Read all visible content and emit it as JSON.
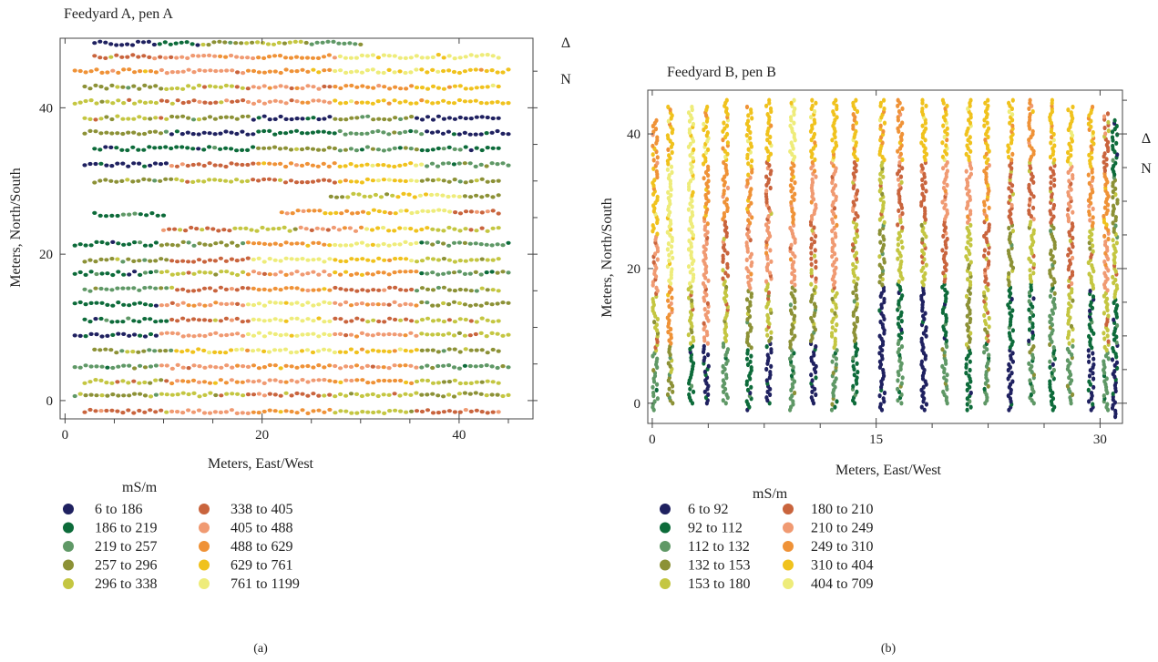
{
  "chart_data": [
    {
      "type": "scatter",
      "panel_label": "(a)",
      "title": "Feedyard A, pen A",
      "xlabel": "Meters, East/West",
      "ylabel": "Meters, North/South",
      "xlim": [
        -0.5,
        47.5
      ],
      "ylim": [
        -2.5,
        49.5
      ],
      "xticks": [
        0,
        20,
        40
      ],
      "yticks": [
        0,
        20,
        40
      ],
      "north_arrow": [
        "Δ",
        "N"
      ],
      "legend_title": "mS/m",
      "legend_placement": "below-left",
      "series": [
        {
          "name": "6 to 186",
          "color": "#1f2160"
        },
        {
          "name": "186 to 219",
          "color": "#0d6b3a"
        },
        {
          "name": "219 to 257",
          "color": "#5f9866"
        },
        {
          "name": "257 to 296",
          "color": "#8c9136"
        },
        {
          "name": "296 to 338",
          "color": "#c4c641"
        },
        {
          "name": "338 to 405",
          "color": "#c9643d"
        },
        {
          "name": "405 to 488",
          "color": "#f09a72"
        },
        {
          "name": "488 to 629",
          "color": "#ef9237"
        },
        {
          "name": "629 to 761",
          "color": "#f0c21d"
        },
        {
          "name": "761 to 1199",
          "color": "#eeec7a"
        }
      ],
      "passes": {
        "orientation": "horizontal",
        "tracks": [
          {
            "y": -1.5,
            "x_range": [
              2,
              44
            ],
            "classes": [
              5,
              6,
              7,
              4,
              5
            ]
          },
          {
            "y": 0.8,
            "x_range": [
              1,
              45
            ],
            "classes": [
              3,
              4,
              5,
              4,
              3
            ]
          },
          {
            "y": 2.6,
            "x_range": [
              2,
              44
            ],
            "classes": [
              4,
              7,
              6,
              7,
              4
            ]
          },
          {
            "y": 4.6,
            "x_range": [
              1,
              45
            ],
            "classes": [
              2,
              6,
              7,
              6,
              2
            ]
          },
          {
            "y": 6.8,
            "x_range": [
              3,
              44
            ],
            "classes": [
              3,
              8,
              9,
              8,
              3
            ]
          },
          {
            "y": 9.0,
            "x_range": [
              1,
              45
            ],
            "classes": [
              0,
              6,
              9,
              6,
              4
            ]
          },
          {
            "y": 11.0,
            "x_range": [
              2,
              44
            ],
            "classes": [
              1,
              5,
              9,
              5,
              4
            ]
          },
          {
            "y": 13.2,
            "x_range": [
              1,
              45
            ],
            "classes": [
              1,
              6,
              9,
              6,
              3
            ]
          },
          {
            "y": 15.2,
            "x_range": [
              2,
              44
            ],
            "classes": [
              2,
              5,
              7,
              5,
              3
            ]
          },
          {
            "y": 17.4,
            "x_range": [
              1,
              45
            ],
            "classes": [
              1,
              4,
              6,
              7,
              2
            ]
          },
          {
            "y": 19.2,
            "x_range": [
              2,
              44
            ],
            "classes": [
              3,
              5,
              9,
              8,
              4
            ]
          },
          {
            "y": 21.4,
            "x_range": [
              1,
              45
            ],
            "classes": [
              1,
              3,
              7,
              9,
              2
            ]
          },
          {
            "y": 23.4,
            "x_range": [
              10,
              44
            ],
            "classes": [
              5,
              4,
              6,
              8,
              4
            ]
          },
          {
            "y": 25.4,
            "x_range": [
              3,
              10
            ],
            "classes": [
              1,
              1,
              2,
              1,
              1
            ]
          },
          {
            "y": 25.8,
            "x_range": [
              22,
              44
            ],
            "classes": [
              7,
              7,
              8,
              9,
              5
            ]
          },
          {
            "y": 28.0,
            "x_range": [
              27,
              44
            ],
            "classes": [
              3,
              4,
              8,
              9,
              3
            ]
          },
          {
            "y": 30.0,
            "x_range": [
              3,
              44
            ],
            "classes": [
              3,
              4,
              5,
              8,
              3
            ]
          },
          {
            "y": 32.2,
            "x_range": [
              2,
              45
            ],
            "classes": [
              0,
              5,
              7,
              8,
              2
            ]
          },
          {
            "y": 34.4,
            "x_range": [
              3,
              44
            ],
            "classes": [
              1,
              1,
              3,
              2,
              1
            ]
          },
          {
            "y": 36.6,
            "x_range": [
              2,
              45
            ],
            "classes": [
              3,
              0,
              1,
              2,
              0
            ]
          },
          {
            "y": 38.6,
            "x_range": [
              2,
              44
            ],
            "classes": [
              4,
              3,
              0,
              3,
              0
            ]
          },
          {
            "y": 40.8,
            "x_range": [
              1,
              45
            ],
            "classes": [
              4,
              5,
              6,
              8,
              8
            ]
          },
          {
            "y": 42.8,
            "x_range": [
              2,
              44
            ],
            "classes": [
              3,
              4,
              6,
              7,
              8
            ]
          },
          {
            "y": 45.0,
            "x_range": [
              1,
              45
            ],
            "classes": [
              7,
              6,
              7,
              9,
              8
            ]
          },
          {
            "y": 47.0,
            "x_range": [
              3,
              44
            ],
            "classes": [
              5,
              6,
              7,
              9,
              9
            ]
          },
          {
            "y": 48.8,
            "x_range": [
              3,
              30
            ],
            "classes": [
              0,
              1,
              3,
              4,
              2
            ]
          }
        ]
      }
    },
    {
      "type": "scatter",
      "panel_label": "(b)",
      "title": "Feedyard B, pen B",
      "xlabel": "Meters, East/West",
      "ylabel": "Meters, North/South",
      "xlim": [
        -0.3,
        31.5
      ],
      "ylim": [
        -3,
        46.5
      ],
      "xticks": [
        0,
        15,
        30
      ],
      "yticks": [
        0,
        20,
        40
      ],
      "north_arrow": [
        "Δ",
        "N"
      ],
      "legend_title": "mS/m",
      "legend_placement": "below-left",
      "series": [
        {
          "name": "6 to 92",
          "color": "#1f2160"
        },
        {
          "name": "92 to 112",
          "color": "#0d6b3a"
        },
        {
          "name": "112 to 132",
          "color": "#5f9866"
        },
        {
          "name": "132 to 153",
          "color": "#8c9136"
        },
        {
          "name": "153 to 180",
          "color": "#c4c641"
        },
        {
          "name": "180 to 210",
          "color": "#c9643d"
        },
        {
          "name": "210 to 249",
          "color": "#f09a72"
        },
        {
          "name": "249 to 310",
          "color": "#ef9237"
        },
        {
          "name": "310 to 404",
          "color": "#f0c21d"
        },
        {
          "name": "404 to 709",
          "color": "#eeec7a"
        }
      ],
      "passes": {
        "orientation": "vertical",
        "tracks": [
          {
            "x": 0.2,
            "y_range": [
              -1,
              42
            ],
            "classes": [
              2,
              4,
              6,
              8,
              7
            ]
          },
          {
            "x": 1.2,
            "y_range": [
              0,
              44
            ],
            "classes": [
              3,
              7,
              9,
              9,
              8
            ]
          },
          {
            "x": 2.6,
            "y_range": [
              0,
              44
            ],
            "classes": [
              1,
              4,
              9,
              9,
              9
            ]
          },
          {
            "x": 3.6,
            "y_range": [
              0,
              44
            ],
            "classes": [
              0,
              6,
              6,
              7,
              8
            ]
          },
          {
            "x": 4.9,
            "y_range": [
              0,
              45
            ],
            "classes": [
              2,
              4,
              5,
              7,
              8
            ]
          },
          {
            "x": 6.5,
            "y_range": [
              -1,
              44
            ],
            "classes": [
              1,
              3,
              6,
              7,
              8
            ]
          },
          {
            "x": 7.8,
            "y_range": [
              0,
              45
            ],
            "classes": [
              0,
              4,
              6,
              5,
              8
            ]
          },
          {
            "x": 9.4,
            "y_range": [
              -1,
              45
            ],
            "classes": [
              2,
              3,
              6,
              7,
              9
            ]
          },
          {
            "x": 10.8,
            "y_range": [
              0,
              45
            ],
            "classes": [
              0,
              3,
              5,
              6,
              8
            ]
          },
          {
            "x": 12.2,
            "y_range": [
              -1,
              45
            ],
            "classes": [
              2,
              4,
              6,
              6,
              8
            ]
          },
          {
            "x": 13.6,
            "y_range": [
              0,
              45
            ],
            "classes": [
              1,
              3,
              4,
              5,
              8
            ]
          },
          {
            "x": 15.4,
            "y_range": [
              -1,
              45
            ],
            "classes": [
              0,
              0,
              3,
              4,
              8
            ]
          },
          {
            "x": 16.6,
            "y_range": [
              0,
              45
            ],
            "classes": [
              2,
              1,
              4,
              5,
              7
            ]
          },
          {
            "x": 18.2,
            "y_range": [
              -1,
              45
            ],
            "classes": [
              0,
              0,
              4,
              5,
              8
            ]
          },
          {
            "x": 19.6,
            "y_range": [
              0,
              45
            ],
            "classes": [
              2,
              1,
              5,
              6,
              8
            ]
          },
          {
            "x": 21.2,
            "y_range": [
              -1,
              45
            ],
            "classes": [
              1,
              3,
              4,
              6,
              8
            ]
          },
          {
            "x": 22.4,
            "y_range": [
              0,
              45
            ],
            "classes": [
              2,
              4,
              5,
              7,
              8
            ]
          },
          {
            "x": 24.0,
            "y_range": [
              -1,
              45
            ],
            "classes": [
              0,
              1,
              3,
              5,
              8
            ]
          },
          {
            "x": 25.4,
            "y_range": [
              0,
              45
            ],
            "classes": [
              2,
              1,
              4,
              5,
              7
            ]
          },
          {
            "x": 26.8,
            "y_range": [
              -1,
              45
            ],
            "classes": [
              1,
              2,
              3,
              5,
              8
            ]
          },
          {
            "x": 28.0,
            "y_range": [
              0,
              44
            ],
            "classes": [
              2,
              4,
              5,
              6,
              8
            ]
          },
          {
            "x": 29.4,
            "y_range": [
              -1,
              44
            ],
            "classes": [
              0,
              1,
              4,
              7,
              8
            ]
          },
          {
            "x": 30.4,
            "y_range": [
              -1,
              43
            ],
            "classes": [
              2,
              4,
              6,
              7,
              5
            ]
          },
          {
            "x": 31.0,
            "y_range": [
              -2,
              42
            ],
            "classes": [
              0,
              1,
              4,
              3,
              1
            ]
          }
        ]
      }
    }
  ]
}
